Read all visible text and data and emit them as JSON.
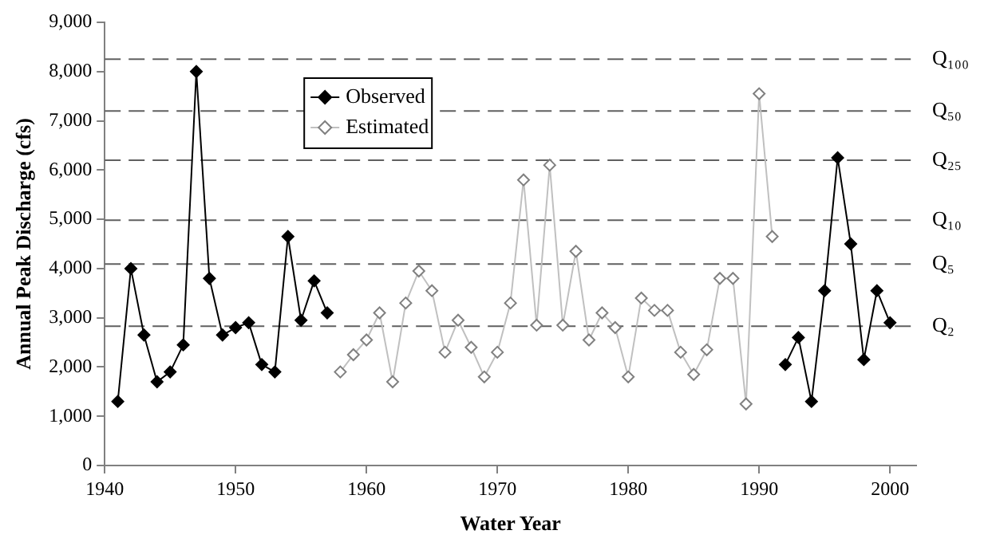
{
  "chart_data": {
    "type": "line",
    "xlabel": "Water Year",
    "ylabel": "Annual Peak Discharge (cfs)",
    "xlim": [
      1940,
      2002
    ],
    "xticks": [
      1940,
      1950,
      1960,
      1970,
      1980,
      1990,
      2000
    ],
    "ylim": [
      0,
      9000
    ],
    "yticks": [
      {
        "value": 0,
        "label": "0"
      },
      {
        "value": 1000,
        "label": "1,000"
      },
      {
        "value": 2000,
        "label": "2,000"
      },
      {
        "value": 3000,
        "label": "3,000"
      },
      {
        "value": 4000,
        "label": "4,000"
      },
      {
        "value": 5000,
        "label": "5,000"
      },
      {
        "value": 6000,
        "label": "6,000"
      },
      {
        "value": 7000,
        "label": "7,000"
      },
      {
        "value": 8000,
        "label": "8,000"
      },
      {
        "value": 9000,
        "label": "9,000"
      }
    ],
    "grid": false,
    "legend": "top left",
    "marker": "diamond",
    "line_style": "solid",
    "x": [
      1941,
      1942,
      1943,
      1944,
      1945,
      1946,
      1947,
      1948,
      1949,
      1950,
      1951,
      1952,
      1953,
      1954,
      1955,
      1956,
      1957,
      1958,
      1959,
      1960,
      1961,
      1962,
      1963,
      1964,
      1965,
      1966,
      1967,
      1968,
      1969,
      1970,
      1971,
      1972,
      1973,
      1974,
      1975,
      1976,
      1977,
      1978,
      1979,
      1980,
      1981,
      1982,
      1983,
      1984,
      1985,
      1986,
      1987,
      1988,
      1989,
      1990,
      1991,
      1992,
      1993,
      1994,
      1995,
      1996,
      1997,
      1998,
      1999,
      2000
    ],
    "series": [
      {
        "name": "Observed",
        "color": "#000000",
        "values": [
          1300,
          4000,
          2650,
          1700,
          1900,
          2450,
          8000,
          3800,
          2650,
          2800,
          2900,
          2050,
          1900,
          4650,
          2950,
          3750,
          3100,
          null,
          null,
          null,
          null,
          null,
          null,
          null,
          null,
          null,
          null,
          null,
          null,
          null,
          null,
          null,
          null,
          null,
          null,
          null,
          null,
          null,
          null,
          null,
          null,
          null,
          null,
          null,
          null,
          null,
          null,
          null,
          null,
          null,
          null,
          2050,
          2600,
          1300,
          3550,
          6250,
          4500,
          2150,
          3550,
          2900
        ]
      },
      {
        "name": "Estimated",
        "color": "#c0c0c0",
        "values": [
          null,
          null,
          null,
          null,
          null,
          null,
          null,
          null,
          null,
          null,
          null,
          null,
          null,
          null,
          null,
          null,
          null,
          1900,
          2250,
          2550,
          3100,
          1700,
          3300,
          3950,
          3550,
          2300,
          2950,
          2400,
          1800,
          2300,
          3300,
          5800,
          2850,
          6100,
          2850,
          4350,
          2550,
          3100,
          2800,
          1800,
          3400,
          3150,
          3150,
          2300,
          1850,
          2350,
          3800,
          3800,
          1250,
          7550,
          4650,
          null,
          null,
          null,
          null,
          null,
          null,
          null,
          null,
          null
        ]
      }
    ],
    "ref_lines": [
      {
        "axis": "y",
        "value": 8250,
        "label": "Q₁₀₀",
        "color": "#606060",
        "line_style": "dashed"
      },
      {
        "axis": "y",
        "value": 7200,
        "label": "Q₅₀",
        "color": "#606060",
        "line_style": "dashed"
      },
      {
        "axis": "y",
        "value": 6200,
        "label": "Q₂₅",
        "color": "#606060",
        "line_style": "dashed"
      },
      {
        "axis": "y",
        "value": 4980,
        "label": "Q₁₀",
        "color": "#606060",
        "line_style": "dashed"
      },
      {
        "axis": "y",
        "value": 4090,
        "label": "Q₅",
        "color": "#606060",
        "line_style": "dashed"
      },
      {
        "axis": "y",
        "value": 2830,
        "label": "Q₂",
        "color": "#606060",
        "line_style": "dashed"
      }
    ]
  }
}
